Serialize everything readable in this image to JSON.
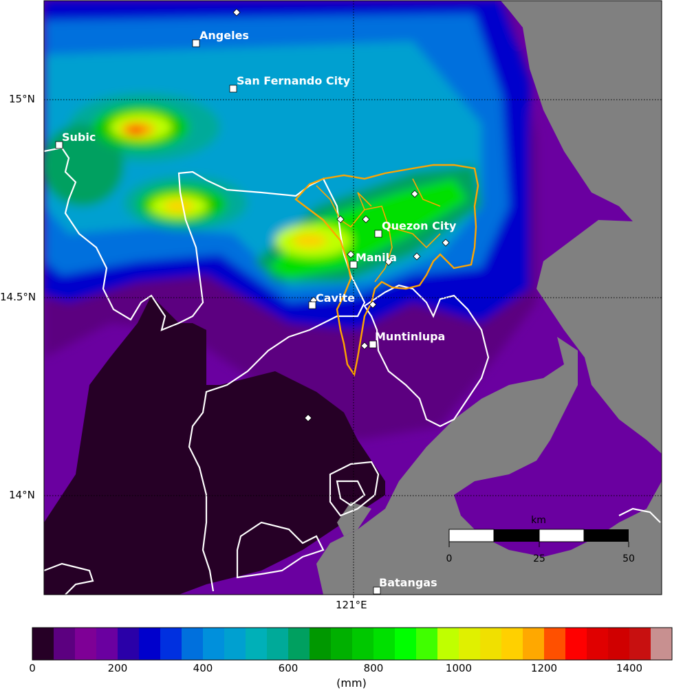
{
  "map": {
    "lat_labels": [
      "15°N",
      "14.5°N",
      "14°N"
    ],
    "lon_labels": [
      "121°E"
    ],
    "cities": [
      {
        "name": "Angeles"
      },
      {
        "name": "San Fernando City"
      },
      {
        "name": "Subic"
      },
      {
        "name": "Quezon City"
      },
      {
        "name": "Manila"
      },
      {
        "name": "Cavite"
      },
      {
        "name": "Muntinlupa"
      },
      {
        "name": "Batangas"
      }
    ],
    "scale_bar": {
      "unit": "km",
      "ticks": [
        "0",
        "25",
        "50"
      ]
    },
    "colors": {
      "land_masked": "#808080",
      "boundary": "#ffffff",
      "metro_boundary": "#ffa500",
      "lowest": "#260026"
    }
  },
  "colorbar": {
    "unit": "(mm)",
    "min": 0,
    "max": 1500,
    "step": 50,
    "ticks": [
      "0",
      "200",
      "400",
      "600",
      "800",
      "1000",
      "1200",
      "1400"
    ],
    "colors": [
      "#260026",
      "#5c0080",
      "#7e0096",
      "#6a00a0",
      "#2a00a8",
      "#0000cc",
      "#0030e0",
      "#0070dd",
      "#0090dc",
      "#00a0d0",
      "#00b0b8",
      "#00aa99",
      "#00a060",
      "#009800",
      "#00b000",
      "#00c800",
      "#00e000",
      "#00ff00",
      "#40ff00",
      "#c0ff00",
      "#e0f000",
      "#f0e000",
      "#ffd000",
      "#ffa800",
      "#ff5000",
      "#ff0000",
      "#e00000",
      "#d00000",
      "#c81010",
      "#c89090"
    ]
  }
}
